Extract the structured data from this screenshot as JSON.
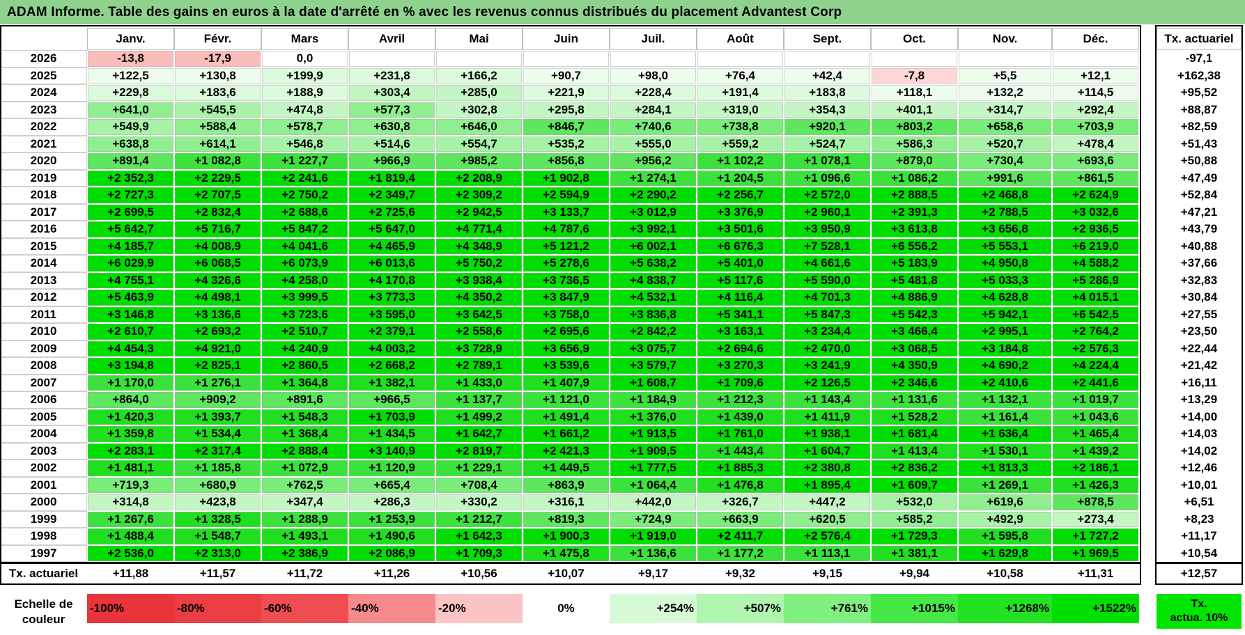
{
  "title": "ADAM Informe. Table des gains en euros à la date d'arrêté en % avec les revenus connus distribués du placement Advantest Corp",
  "months": [
    "Janv.",
    "Févr.",
    "Mars",
    "Avril",
    "Mai",
    "Juin",
    "Juil.",
    "Août",
    "Sept.",
    "Oct.",
    "Nov.",
    "Déc."
  ],
  "tx_header": "Tx. actuariel",
  "rows": [
    {
      "year": "2026",
      "values": [
        "-13,8",
        "-17,9",
        "0,0",
        "",
        "",
        "",
        "",
        "",
        "",
        "",
        "",
        ""
      ],
      "tx": "-97,1"
    },
    {
      "year": "2025",
      "values": [
        "+122,5",
        "+130,8",
        "+199,9",
        "+231,8",
        "+166,2",
        "+90,7",
        "+98,0",
        "+76,4",
        "+42,4",
        "-7,8",
        "+5,5",
        "+12,1"
      ],
      "tx": "+162,38"
    },
    {
      "year": "2024",
      "values": [
        "+229,8",
        "+183,6",
        "+188,9",
        "+303,4",
        "+285,0",
        "+221,9",
        "+228,4",
        "+191,4",
        "+183,8",
        "+118,1",
        "+132,2",
        "+114,5"
      ],
      "tx": "+95,52"
    },
    {
      "year": "2023",
      "values": [
        "+641,0",
        "+545,5",
        "+474,8",
        "+577,3",
        "+302,8",
        "+295,8",
        "+284,1",
        "+319,0",
        "+354,3",
        "+401,1",
        "+314,7",
        "+292,4"
      ],
      "tx": "+88,87"
    },
    {
      "year": "2022",
      "values": [
        "+549,9",
        "+588,4",
        "+578,7",
        "+630,8",
        "+646,0",
        "+846,7",
        "+740,6",
        "+738,8",
        "+920,1",
        "+803,2",
        "+658,6",
        "+703,9"
      ],
      "tx": "+82,59"
    },
    {
      "year": "2021",
      "values": [
        "+638,8",
        "+614,1",
        "+546,8",
        "+514,6",
        "+554,7",
        "+535,2",
        "+555,0",
        "+559,2",
        "+524,7",
        "+586,3",
        "+520,7",
        "+478,4"
      ],
      "tx": "+51,43"
    },
    {
      "year": "2020",
      "values": [
        "+891,4",
        "+1 082,8",
        "+1 227,7",
        "+966,9",
        "+985,2",
        "+856,8",
        "+956,2",
        "+1 102,2",
        "+1 078,1",
        "+879,0",
        "+730,4",
        "+693,6"
      ],
      "tx": "+50,88"
    },
    {
      "year": "2019",
      "values": [
        "+2 352,3",
        "+2 229,5",
        "+2 241,6",
        "+1 819,4",
        "+2 208,9",
        "+1 902,8",
        "+1 274,1",
        "+1 204,5",
        "+1 096,6",
        "+1 086,2",
        "+991,6",
        "+861,5"
      ],
      "tx": "+47,49"
    },
    {
      "year": "2018",
      "values": [
        "+2 727,3",
        "+2 707,5",
        "+2 750,2",
        "+2 349,7",
        "+2 309,2",
        "+2 594,9",
        "+2 290,2",
        "+2 256,7",
        "+2 572,0",
        "+2 888,5",
        "+2 468,8",
        "+2 624,9"
      ],
      "tx": "+52,84"
    },
    {
      "year": "2017",
      "values": [
        "+2 699,5",
        "+2 832,4",
        "+2 688,6",
        "+2 725,6",
        "+2 942,5",
        "+3 133,7",
        "+3 012,9",
        "+3 376,9",
        "+2 960,1",
        "+2 391,3",
        "+2 788,5",
        "+3 032,6"
      ],
      "tx": "+47,21"
    },
    {
      "year": "2016",
      "values": [
        "+5 642,7",
        "+5 716,7",
        "+5 847,2",
        "+5 647,0",
        "+4 771,4",
        "+4 787,6",
        "+3 992,1",
        "+3 501,6",
        "+3 950,9",
        "+3 613,8",
        "+3 656,8",
        "+2 936,5"
      ],
      "tx": "+43,79"
    },
    {
      "year": "2015",
      "values": [
        "+4 185,7",
        "+4 008,9",
        "+4 041,6",
        "+4 465,9",
        "+4 348,9",
        "+5 121,2",
        "+6 002,1",
        "+6 676,3",
        "+7 528,1",
        "+6 556,2",
        "+5 553,1",
        "+6 219,0"
      ],
      "tx": "+40,88"
    },
    {
      "year": "2014",
      "values": [
        "+6 029,9",
        "+6 068,5",
        "+6 073,9",
        "+6 013,6",
        "+5 750,2",
        "+5 278,6",
        "+5 638,2",
        "+5 401,0",
        "+4 661,6",
        "+5 183,9",
        "+4 950,8",
        "+4 588,2"
      ],
      "tx": "+37,66"
    },
    {
      "year": "2013",
      "values": [
        "+4 755,1",
        "+4 326,6",
        "+4 258,0",
        "+4 170,8",
        "+3 938,4",
        "+3 736,5",
        "+4 838,7",
        "+5 117,6",
        "+5 590,0",
        "+5 481,8",
        "+5 033,3",
        "+5 286,9"
      ],
      "tx": "+32,83"
    },
    {
      "year": "2012",
      "values": [
        "+5 463,9",
        "+4 498,1",
        "+3 999,5",
        "+3 773,3",
        "+4 350,2",
        "+3 847,9",
        "+4 532,1",
        "+4 116,4",
        "+4 701,3",
        "+4 886,9",
        "+4 628,8",
        "+4 015,1"
      ],
      "tx": "+30,84"
    },
    {
      "year": "2011",
      "values": [
        "+3 146,8",
        "+3 136,6",
        "+3 723,6",
        "+3 595,0",
        "+3 642,5",
        "+3 758,0",
        "+3 836,8",
        "+5 341,1",
        "+5 847,3",
        "+5 542,3",
        "+5 942,1",
        "+6 542,5"
      ],
      "tx": "+27,55"
    },
    {
      "year": "2010",
      "values": [
        "+2 610,7",
        "+2 693,2",
        "+2 510,7",
        "+2 379,1",
        "+2 558,6",
        "+2 695,6",
        "+2 842,2",
        "+3 163,1",
        "+3 234,4",
        "+3 466,4",
        "+2 995,1",
        "+2 764,2"
      ],
      "tx": "+23,50"
    },
    {
      "year": "2009",
      "values": [
        "+4 454,3",
        "+4 921,0",
        "+4 240,9",
        "+4 003,2",
        "+3 728,9",
        "+3 656,9",
        "+3 075,7",
        "+2 694,6",
        "+2 470,0",
        "+3 068,5",
        "+3 184,8",
        "+2 576,3"
      ],
      "tx": "+22,44"
    },
    {
      "year": "2008",
      "values": [
        "+3 194,8",
        "+2 825,1",
        "+2 860,5",
        "+2 668,2",
        "+2 789,1",
        "+3 539,6",
        "+3 579,7",
        "+3 270,3",
        "+3 241,9",
        "+4 350,9",
        "+4 690,2",
        "+4 224,4"
      ],
      "tx": "+21,42"
    },
    {
      "year": "2007",
      "values": [
        "+1 170,0",
        "+1 276,1",
        "+1 364,8",
        "+1 382,1",
        "+1 433,0",
        "+1 407,9",
        "+1 608,7",
        "+1 709,6",
        "+2 126,5",
        "+2 346,6",
        "+2 410,6",
        "+2 441,6"
      ],
      "tx": "+16,11"
    },
    {
      "year": "2006",
      "values": [
        "+864,0",
        "+909,2",
        "+891,6",
        "+966,5",
        "+1 137,7",
        "+1 121,0",
        "+1 184,9",
        "+1 212,3",
        "+1 143,4",
        "+1 131,6",
        "+1 132,1",
        "+1 019,7"
      ],
      "tx": "+13,29"
    },
    {
      "year": "2005",
      "values": [
        "+1 420,3",
        "+1 393,7",
        "+1 548,3",
        "+1 703,9",
        "+1 499,2",
        "+1 491,4",
        "+1 376,0",
        "+1 439,0",
        "+1 411,9",
        "+1 528,2",
        "+1 161,4",
        "+1 043,6"
      ],
      "tx": "+14,00"
    },
    {
      "year": "2004",
      "values": [
        "+1 359,8",
        "+1 534,4",
        "+1 368,4",
        "+1 434,5",
        "+1 642,7",
        "+1 661,2",
        "+1 913,5",
        "+1 761,0",
        "+1 938,1",
        "+1 681,4",
        "+1 636,4",
        "+1 465,4"
      ],
      "tx": "+14,03"
    },
    {
      "year": "2003",
      "values": [
        "+2 283,1",
        "+2 317,4",
        "+2 888,4",
        "+3 140,9",
        "+2 819,7",
        "+2 421,3",
        "+1 909,5",
        "+1 443,4",
        "+1 604,7",
        "+1 413,4",
        "+1 530,1",
        "+1 439,2"
      ],
      "tx": "+14,02"
    },
    {
      "year": "2002",
      "values": [
        "+1 481,1",
        "+1 185,8",
        "+1 072,9",
        "+1 120,9",
        "+1 229,1",
        "+1 449,5",
        "+1 777,5",
        "+1 885,3",
        "+2 380,8",
        "+2 836,2",
        "+1 813,3",
        "+2 186,1"
      ],
      "tx": "+12,46"
    },
    {
      "year": "2001",
      "values": [
        "+719,3",
        "+680,9",
        "+762,5",
        "+665,4",
        "+708,4",
        "+863,9",
        "+1 064,4",
        "+1 476,8",
        "+1 895,4",
        "+1 609,7",
        "+1 269,1",
        "+1 426,3"
      ],
      "tx": "+10,01"
    },
    {
      "year": "2000",
      "values": [
        "+314,8",
        "+423,8",
        "+347,4",
        "+286,3",
        "+330,2",
        "+316,1",
        "+442,0",
        "+326,7",
        "+447,2",
        "+532,0",
        "+619,6",
        "+878,5"
      ],
      "tx": "+6,51"
    },
    {
      "year": "1999",
      "values": [
        "+1 267,6",
        "+1 328,5",
        "+1 288,9",
        "+1 253,9",
        "+1 212,7",
        "+819,3",
        "+724,9",
        "+663,9",
        "+620,5",
        "+585,2",
        "+492,9",
        "+273,4"
      ],
      "tx": "+8,23"
    },
    {
      "year": "1998",
      "values": [
        "+1 488,4",
        "+1 548,7",
        "+1 493,1",
        "+1 490,6",
        "+1 642,3",
        "+1 900,3",
        "+1 919,0",
        "+2 411,7",
        "+2 576,4",
        "+1 729,3",
        "+1 595,8",
        "+1 727,2"
      ],
      "tx": "+11,17"
    },
    {
      "year": "1997",
      "values": [
        "+2 536,0",
        "+2 313,0",
        "+2 386,9",
        "+2 086,9",
        "+1 709,3",
        "+1 475,8",
        "+1 136,6",
        "+1 177,2",
        "+1 113,1",
        "+1 381,1",
        "+1 629,8",
        "+1 969,5"
      ],
      "tx": "+10,54"
    }
  ],
  "footer": {
    "label": "Tx. actuariel",
    "values": [
      "+11,88",
      "+11,57",
      "+11,72",
      "+11,26",
      "+10,56",
      "+10,07",
      "+9,17",
      "+9,32",
      "+9,15",
      "+9,94",
      "+10,58",
      "+11,31"
    ],
    "tx": "+12,57"
  },
  "scale": {
    "label_line1": "Echelle de",
    "label_line2": "couleur",
    "items": [
      {
        "label": "-100%",
        "color": "#e8343a"
      },
      {
        "label": "-80%",
        "color": "#ea3e44"
      },
      {
        "label": "-60%",
        "color": "#ef4d52"
      },
      {
        "label": "-40%",
        "color": "#f58a8c"
      },
      {
        "label": "-20%",
        "color": "#fbc4c4"
      },
      {
        "label": "0%",
        "color": "#ffffff"
      },
      {
        "label": "+254%",
        "color": "#d6fad6"
      },
      {
        "label": "+507%",
        "color": "#b0f5b0"
      },
      {
        "label": "+761%",
        "color": "#80f080"
      },
      {
        "label": "+1015%",
        "color": "#46e846"
      },
      {
        "label": "+1268%",
        "color": "#22e222"
      },
      {
        "label": "+1522%",
        "color": "#00e000"
      }
    ],
    "tx_legend_line1": "Tx.",
    "tx_legend_line2": "actua. 10%",
    "tx_legend_color": "#00e600"
  }
}
